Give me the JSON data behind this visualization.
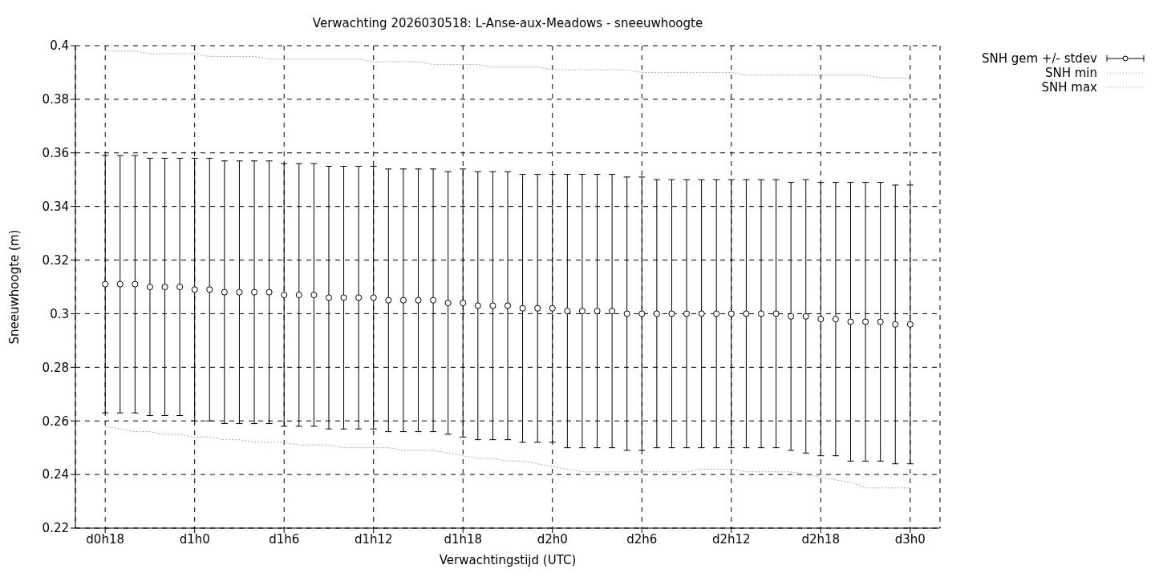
{
  "chart_data": {
    "type": "scatter",
    "title": "Verwachting 2026030518: L-Anse-aux-Meadows - sneeuwhoogte",
    "xlabel": "Verwachtingstijd (UTC)",
    "ylabel": "Sneeuwhoogte (m)",
    "categories": [
      "d0h18",
      null,
      null,
      null,
      null,
      null,
      "d1h0",
      null,
      null,
      null,
      null,
      null,
      "d1h6",
      null,
      null,
      null,
      null,
      null,
      "d1h12",
      null,
      null,
      null,
      null,
      null,
      "d1h18",
      null,
      null,
      null,
      null,
      null,
      "d2h0",
      null,
      null,
      null,
      null,
      null,
      "d2h6",
      null,
      null,
      null,
      null,
      null,
      "d2h12",
      null,
      null,
      null,
      null,
      null,
      "d2h18",
      null,
      null,
      null,
      null,
      null,
      "d3h0"
    ],
    "ylim": [
      0.22,
      0.4
    ],
    "yticks": [
      0.22,
      0.24,
      0.26,
      0.28,
      0.3,
      0.32,
      0.34,
      0.36,
      0.38,
      0.4
    ],
    "grid": true,
    "legend": "top right",
    "series": [
      {
        "name": "SNH gem +/- stdev",
        "color": "#000000",
        "marker": "circle",
        "values": [
          0.311,
          0.311,
          0.311,
          0.31,
          0.31,
          0.31,
          0.309,
          0.309,
          0.308,
          0.308,
          0.308,
          0.308,
          0.307,
          0.307,
          0.307,
          0.306,
          0.306,
          0.306,
          0.306,
          0.305,
          0.305,
          0.305,
          0.305,
          0.304,
          0.304,
          0.303,
          0.303,
          0.303,
          0.302,
          0.302,
          0.302,
          0.301,
          0.301,
          0.301,
          0.301,
          0.3,
          0.3,
          0.3,
          0.3,
          0.3,
          0.3,
          0.3,
          0.3,
          0.3,
          0.3,
          0.3,
          0.299,
          0.299,
          0.298,
          0.298,
          0.297,
          0.297,
          0.297,
          0.296,
          0.296
        ],
        "errors": [
          [
            0.263,
            0.359
          ],
          [
            0.263,
            0.359
          ],
          [
            0.263,
            0.359
          ],
          [
            0.262,
            0.358
          ],
          [
            0.262,
            0.358
          ],
          [
            0.262,
            0.358
          ],
          [
            0.26,
            0.358
          ],
          [
            0.26,
            0.358
          ],
          [
            0.259,
            0.357
          ],
          [
            0.259,
            0.357
          ],
          [
            0.259,
            0.357
          ],
          [
            0.259,
            0.357
          ],
          [
            0.258,
            0.356
          ],
          [
            0.258,
            0.356
          ],
          [
            0.258,
            0.356
          ],
          [
            0.257,
            0.355
          ],
          [
            0.257,
            0.355
          ],
          [
            0.257,
            0.355
          ],
          [
            0.257,
            0.355
          ],
          [
            0.256,
            0.354
          ],
          [
            0.256,
            0.354
          ],
          [
            0.256,
            0.354
          ],
          [
            0.256,
            0.354
          ],
          [
            0.255,
            0.353
          ],
          [
            0.254,
            0.354
          ],
          [
            0.253,
            0.353
          ],
          [
            0.253,
            0.353
          ],
          [
            0.253,
            0.353
          ],
          [
            0.252,
            0.352
          ],
          [
            0.252,
            0.352
          ],
          [
            0.252,
            0.352
          ],
          [
            0.25,
            0.352
          ],
          [
            0.25,
            0.352
          ],
          [
            0.25,
            0.352
          ],
          [
            0.25,
            0.352
          ],
          [
            0.249,
            0.351
          ],
          [
            0.249,
            0.351
          ],
          [
            0.25,
            0.35
          ],
          [
            0.25,
            0.35
          ],
          [
            0.25,
            0.35
          ],
          [
            0.25,
            0.35
          ],
          [
            0.25,
            0.35
          ],
          [
            0.25,
            0.35
          ],
          [
            0.25,
            0.35
          ],
          [
            0.25,
            0.35
          ],
          [
            0.25,
            0.35
          ],
          [
            0.249,
            0.349
          ],
          [
            0.248,
            0.35
          ],
          [
            0.247,
            0.349
          ],
          [
            0.247,
            0.349
          ],
          [
            0.245,
            0.349
          ],
          [
            0.245,
            0.349
          ],
          [
            0.245,
            0.349
          ],
          [
            0.244,
            0.348
          ],
          [
            0.244,
            0.348
          ]
        ]
      },
      {
        "name": "SNH min",
        "type": "line",
        "color": "#a0a0a0",
        "line_style": "dotted",
        "marker": "none",
        "values": [
          0.258,
          0.257,
          0.256,
          0.256,
          0.255,
          0.255,
          0.254,
          0.254,
          0.253,
          0.253,
          0.252,
          0.252,
          0.252,
          0.251,
          0.251,
          0.251,
          0.25,
          0.25,
          0.25,
          0.25,
          0.249,
          0.249,
          0.249,
          0.248,
          0.247,
          0.246,
          0.246,
          0.245,
          0.245,
          0.244,
          0.243,
          0.242,
          0.241,
          0.241,
          0.241,
          0.241,
          0.241,
          0.241,
          0.241,
          0.241,
          0.242,
          0.242,
          0.242,
          0.241,
          0.241,
          0.241,
          0.241,
          0.24,
          0.239,
          0.238,
          0.237,
          0.235,
          0.235,
          0.235,
          0.235
        ]
      },
      {
        "name": "SNH max",
        "type": "line",
        "color": "#a0a0a0",
        "line_style": "dotted",
        "marker": "none",
        "values": [
          0.398,
          0.398,
          0.398,
          0.397,
          0.397,
          0.397,
          0.397,
          0.396,
          0.396,
          0.396,
          0.396,
          0.395,
          0.395,
          0.395,
          0.395,
          0.395,
          0.395,
          0.395,
          0.394,
          0.394,
          0.394,
          0.394,
          0.393,
          0.393,
          0.393,
          0.393,
          0.392,
          0.392,
          0.392,
          0.392,
          0.391,
          0.391,
          0.391,
          0.391,
          0.391,
          0.391,
          0.39,
          0.39,
          0.39,
          0.39,
          0.39,
          0.39,
          0.39,
          0.389,
          0.389,
          0.389,
          0.389,
          0.389,
          0.389,
          0.389,
          0.389,
          0.389,
          0.388,
          0.388,
          0.388
        ]
      }
    ]
  }
}
